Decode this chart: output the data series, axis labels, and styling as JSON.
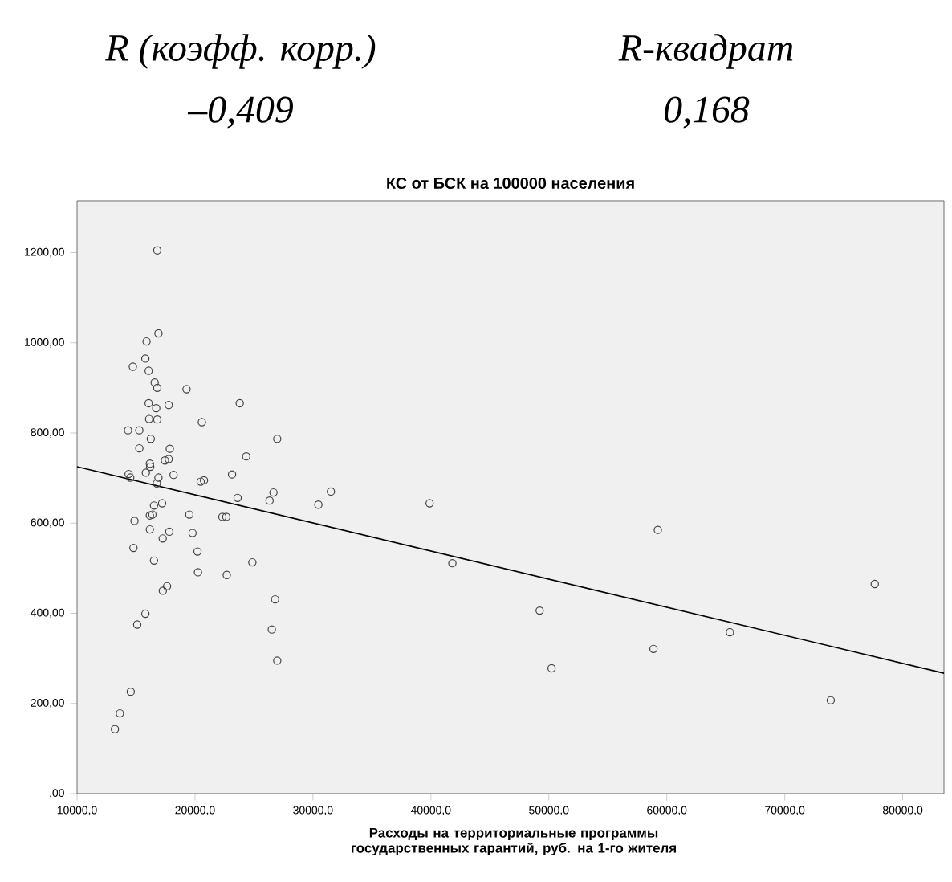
{
  "chart_data": {
    "type": "scatter",
    "title": "КС от БСК на 100000 населения",
    "xlabel": "Расходы на территориальные программы государственных гарантий, руб. на 1-го жителя",
    "annotations": [
      "R (коэфф. корр.)",
      "R-квадрат",
      "–0,409",
      "0,168"
    ],
    "xlim": [
      10000,
      83500
    ],
    "ylim": [
      0,
      1315
    ],
    "xticks": [
      {
        "value": 10000,
        "label": "10000,0"
      },
      {
        "value": 20000,
        "label": "20000,0"
      },
      {
        "value": 30000,
        "label": "30000,0"
      },
      {
        "value": 40000,
        "label": "40000,0"
      },
      {
        "value": 50000,
        "label": "50000,0"
      },
      {
        "value": 60000,
        "label": "60000,0"
      },
      {
        "value": 70000,
        "label": "70000,0"
      },
      {
        "value": 80000,
        "label": "80000,0"
      }
    ],
    "yticks": [
      {
        "value": 0,
        "label": ",00"
      },
      {
        "value": 200,
        "label": "200,00"
      },
      {
        "value": 400,
        "label": "400,00"
      },
      {
        "value": 600,
        "label": "600,00"
      },
      {
        "value": 800,
        "label": "800,00"
      },
      {
        "value": 1000,
        "label": "1000,00"
      },
      {
        "value": 1200,
        "label": "1200,00"
      }
    ],
    "grid": false,
    "series": [
      {
        "marker": "circle",
        "color": "#404040",
        "x": [
          16800,
          16900,
          15890,
          15790,
          14730,
          16070,
          16580,
          16800,
          19280,
          16070,
          17770,
          16710,
          23790,
          16110,
          16800,
          20580,
          14320,
          15280,
          16250,
          26970,
          15280,
          17860,
          17770,
          17450,
          16170,
          16200,
          24340,
          14370,
          14510,
          15830,
          18180,
          16900,
          16760,
          20760,
          20480,
          23140,
          23610,
          26650,
          26320,
          31520,
          30460,
          39890,
          17210,
          16520,
          16390,
          16170,
          19520,
          22320,
          22650,
          14870,
          16170,
          17820,
          19790,
          17260,
          14780,
          20210,
          16520,
          20250,
          22690,
          24860,
          41820,
          17270,
          17630,
          26790,
          15790,
          15100,
          26510,
          26970,
          14550,
          13630,
          13210,
          59240,
          49220,
          50230,
          58870,
          65350,
          73900,
          77630
        ],
        "values": [
          1205,
          1021,
          1003,
          965,
          947,
          938,
          912,
          900,
          897,
          866,
          862,
          855,
          866,
          831,
          830,
          824,
          806,
          806,
          787,
          787,
          766,
          765,
          742,
          739,
          732,
          725,
          748,
          709,
          701,
          712,
          707,
          701,
          688,
          695,
          692,
          708,
          656,
          668,
          650,
          670,
          641,
          644,
          644,
          639,
          619,
          617,
          619,
          614,
          614,
          605,
          586,
          581,
          578,
          566,
          545,
          537,
          517,
          491,
          485,
          513,
          511,
          450,
          460,
          431,
          399,
          375,
          364,
          295,
          226,
          178,
          143,
          585,
          406,
          278,
          321,
          358,
          207,
          465
        ]
      },
      {
        "type": "line",
        "marker": "none",
        "color": "#000000",
        "x": [
          10000,
          83500
        ],
        "values": [
          725,
          267
        ]
      }
    ]
  }
}
